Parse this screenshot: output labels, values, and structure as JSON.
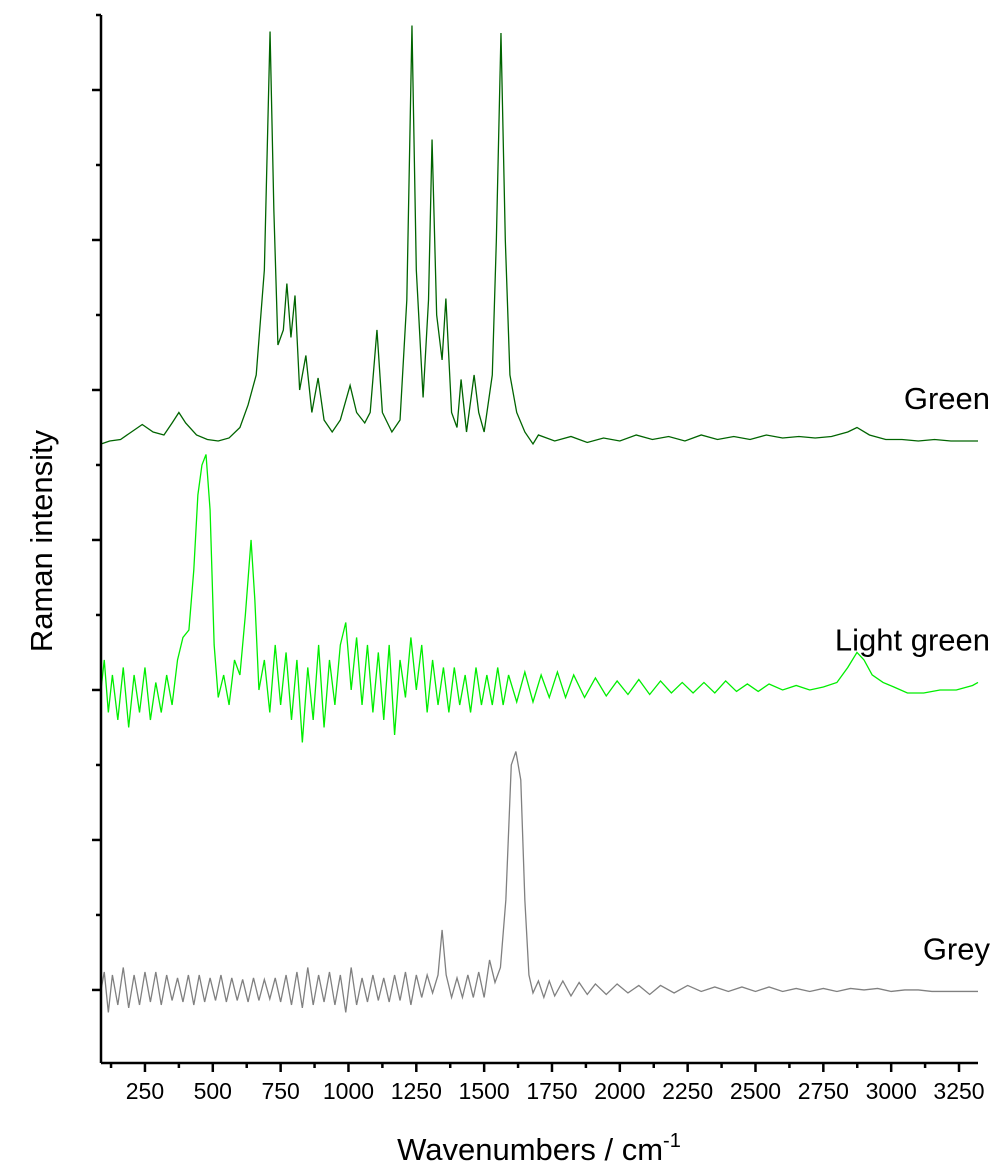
{
  "chart_data": {
    "type": "line",
    "x_label": "Wavenumbers / cm",
    "x_label_sup": "-1",
    "y_label": "Raman intensity",
    "xlim": [
      88,
      3320
    ],
    "ylim": [
      0.513,
      7.5
    ],
    "xticks": [
      250,
      500,
      750,
      1000,
      1250,
      1500,
      1750,
      2000,
      2250,
      2500,
      2750,
      3000,
      3250
    ],
    "xminorticks": [
      125,
      375,
      625,
      875,
      1125,
      1375,
      1625,
      1875,
      2125,
      2375,
      2625,
      2875,
      3125
    ],
    "yticks": [
      1,
      2,
      3,
      4,
      5,
      6,
      7
    ],
    "yminorticks": [
      1.5,
      2.5,
      3.5,
      4.5,
      5.5,
      6.5,
      7.5
    ],
    "ytick_labels": false,
    "grid": false,
    "series": [
      {
        "name": "Green",
        "color": "#006400",
        "x": [
          88,
          120,
          160,
          200,
          240,
          280,
          320,
          350,
          375,
          400,
          440,
          480,
          520,
          560,
          600,
          630,
          660,
          690,
          711,
          725,
          740,
          760,
          773,
          788,
          803,
          820,
          843,
          865,
          888,
          910,
          940,
          970,
          1006,
          1030,
          1060,
          1080,
          1105,
          1125,
          1160,
          1190,
          1215,
          1234,
          1250,
          1275,
          1295,
          1308,
          1325,
          1345,
          1359,
          1380,
          1400,
          1415,
          1435,
          1463,
          1480,
          1500,
          1530,
          1545,
          1562,
          1578,
          1595,
          1620,
          1650,
          1680,
          1700,
          1760,
          1820,
          1880,
          1940,
          2000,
          2060,
          2120,
          2180,
          2240,
          2300,
          2360,
          2420,
          2480,
          2540,
          2600,
          2660,
          2720,
          2780,
          2840,
          2874,
          2920,
          2980,
          3040,
          3100,
          3160,
          3220,
          3280,
          3320
        ],
        "values": [
          4.64,
          4.66,
          4.67,
          4.72,
          4.77,
          4.72,
          4.7,
          4.78,
          4.85,
          4.78,
          4.7,
          4.67,
          4.66,
          4.68,
          4.75,
          4.9,
          5.1,
          5.8,
          7.39,
          6.2,
          5.3,
          5.4,
          5.71,
          5.35,
          5.63,
          5.0,
          5.23,
          4.85,
          5.08,
          4.8,
          4.72,
          4.8,
          5.03,
          4.85,
          4.78,
          4.85,
          5.4,
          4.85,
          4.72,
          4.8,
          5.6,
          7.43,
          5.8,
          4.95,
          5.6,
          6.67,
          5.5,
          5.2,
          5.61,
          4.85,
          4.75,
          5.07,
          4.72,
          5.1,
          4.85,
          4.72,
          5.1,
          6.0,
          7.38,
          6.0,
          5.1,
          4.85,
          4.72,
          4.64,
          4.7,
          4.66,
          4.69,
          4.65,
          4.68,
          4.66,
          4.7,
          4.67,
          4.69,
          4.66,
          4.7,
          4.67,
          4.69,
          4.67,
          4.7,
          4.68,
          4.69,
          4.68,
          4.69,
          4.72,
          4.75,
          4.7,
          4.67,
          4.67,
          4.66,
          4.67,
          4.66,
          4.66,
          4.66
        ]
      },
      {
        "name": "Light green",
        "color": "#00ee00",
        "x": [
          88,
          100,
          115,
          130,
          150,
          170,
          190,
          210,
          230,
          250,
          270,
          290,
          310,
          330,
          350,
          370,
          390,
          412,
          430,
          445,
          460,
          475,
          490,
          505,
          520,
          540,
          560,
          580,
          600,
          620,
          641,
          655,
          670,
          690,
          710,
          730,
          750,
          770,
          790,
          810,
          830,
          850,
          870,
          890,
          910,
          930,
          950,
          970,
          990,
          1010,
          1030,
          1050,
          1070,
          1090,
          1110,
          1130,
          1150,
          1170,
          1190,
          1210,
          1230,
          1250,
          1270,
          1290,
          1310,
          1330,
          1350,
          1370,
          1390,
          1410,
          1430,
          1450,
          1470,
          1490,
          1510,
          1530,
          1550,
          1570,
          1590,
          1620,
          1650,
          1680,
          1710,
          1740,
          1770,
          1800,
          1830,
          1870,
          1910,
          1950,
          1990,
          2030,
          2070,
          2110,
          2150,
          2190,
          2230,
          2270,
          2310,
          2350,
          2390,
          2430,
          2470,
          2510,
          2550,
          2600,
          2650,
          2700,
          2750,
          2800,
          2840,
          2874,
          2900,
          2930,
          2970,
          3010,
          3060,
          3120,
          3180,
          3240,
          3300,
          3320
        ],
        "values": [
          3.0,
          3.2,
          2.85,
          3.1,
          2.8,
          3.15,
          2.75,
          3.1,
          2.85,
          3.15,
          2.8,
          3.05,
          2.85,
          3.1,
          2.9,
          3.2,
          3.35,
          3.4,
          3.8,
          4.3,
          4.5,
          4.57,
          4.2,
          3.3,
          2.95,
          3.1,
          2.9,
          3.2,
          3.1,
          3.5,
          4.0,
          3.6,
          3.0,
          3.2,
          2.85,
          3.3,
          2.9,
          3.25,
          2.8,
          3.2,
          2.65,
          3.15,
          2.8,
          3.3,
          2.75,
          3.2,
          2.9,
          3.3,
          3.45,
          3.0,
          3.35,
          2.9,
          3.3,
          2.85,
          3.25,
          2.8,
          3.3,
          2.7,
          3.2,
          2.95,
          3.35,
          3.0,
          3.3,
          2.85,
          3.2,
          2.9,
          3.15,
          2.85,
          3.15,
          2.9,
          3.1,
          2.85,
          3.15,
          2.9,
          3.1,
          2.9,
          3.15,
          2.9,
          3.1,
          2.92,
          3.12,
          2.92,
          3.1,
          2.95,
          3.12,
          2.95,
          3.1,
          2.95,
          3.08,
          2.96,
          3.06,
          2.97,
          3.07,
          2.97,
          3.06,
          2.98,
          3.05,
          2.98,
          3.05,
          2.98,
          3.06,
          2.99,
          3.04,
          2.99,
          3.04,
          3.0,
          3.03,
          3.0,
          3.02,
          3.05,
          3.15,
          3.25,
          3.2,
          3.1,
          3.05,
          3.02,
          2.98,
          2.98,
          3.0,
          3.0,
          3.03,
          3.05
        ]
      },
      {
        "name": "Grey",
        "color": "#808080",
        "x": [
          88,
          100,
          115,
          130,
          150,
          170,
          190,
          210,
          230,
          250,
          270,
          290,
          310,
          330,
          350,
          370,
          390,
          410,
          430,
          450,
          470,
          490,
          510,
          530,
          550,
          570,
          590,
          610,
          630,
          650,
          670,
          690,
          710,
          730,
          750,
          770,
          790,
          810,
          830,
          850,
          870,
          890,
          910,
          930,
          950,
          970,
          990,
          1010,
          1030,
          1050,
          1070,
          1090,
          1110,
          1130,
          1150,
          1170,
          1190,
          1210,
          1230,
          1250,
          1270,
          1290,
          1310,
          1330,
          1345,
          1360,
          1380,
          1400,
          1420,
          1440,
          1460,
          1480,
          1500,
          1520,
          1540,
          1560,
          1580,
          1600,
          1617,
          1635,
          1650,
          1665,
          1680,
          1700,
          1720,
          1740,
          1760,
          1790,
          1820,
          1850,
          1880,
          1910,
          1950,
          1990,
          2030,
          2070,
          2110,
          2150,
          2200,
          2250,
          2300,
          2350,
          2400,
          2450,
          2500,
          2550,
          2600,
          2650,
          2700,
          2750,
          2800,
          2850,
          2900,
          2950,
          3000,
          3050,
          3100,
          3150,
          3200,
          3250,
          3320
        ],
        "values": [
          1.0,
          1.12,
          0.85,
          1.1,
          0.9,
          1.15,
          0.88,
          1.1,
          0.9,
          1.12,
          0.92,
          1.12,
          0.9,
          1.1,
          0.93,
          1.08,
          0.92,
          1.1,
          0.9,
          1.1,
          0.92,
          1.08,
          0.93,
          1.1,
          0.92,
          1.08,
          0.93,
          1.07,
          0.92,
          1.08,
          0.93,
          1.07,
          0.94,
          1.08,
          0.92,
          1.1,
          0.9,
          1.12,
          0.88,
          1.15,
          0.9,
          1.1,
          0.92,
          1.12,
          0.9,
          1.1,
          0.85,
          1.15,
          0.9,
          1.08,
          0.92,
          1.1,
          0.93,
          1.08,
          0.92,
          1.1,
          0.93,
          1.12,
          0.9,
          1.1,
          0.95,
          1.1,
          0.98,
          1.1,
          1.4,
          1.1,
          0.95,
          1.08,
          0.95,
          1.1,
          0.95,
          1.12,
          0.95,
          1.2,
          1.05,
          1.15,
          1.6,
          2.5,
          2.59,
          2.4,
          1.6,
          1.1,
          0.98,
          1.06,
          0.95,
          1.06,
          0.96,
          1.06,
          0.96,
          1.05,
          0.97,
          1.04,
          0.97,
          1.04,
          0.98,
          1.03,
          0.97,
          1.03,
          0.98,
          1.03,
          0.99,
          1.02,
          0.99,
          1.02,
          0.99,
          1.02,
          0.99,
          1.01,
          0.99,
          1.01,
          0.99,
          1.01,
          1.0,
          1.01,
          0.99,
          1.0,
          1.0,
          0.99,
          0.99,
          0.99,
          0.99
        ]
      }
    ]
  }
}
